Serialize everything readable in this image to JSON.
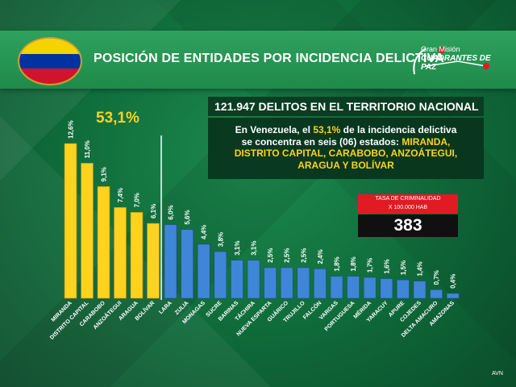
{
  "header": {
    "title": "POSICIÓN DE ENTIDADES  POR INCIDENCIA DELICTIVA",
    "right_logo_line1": "Gran Misión",
    "right_logo_line2": "CUADRANTES DE PAZ"
  },
  "info": {
    "heading": "121.947 DELITOS  EN EL TERRITORIO NACIONAL",
    "line1_a": "En Venezuela, el ",
    "line1_pct": "53,1%",
    "line1_b": " de la incidencia delictiva",
    "line2": "se concentra en seis (06) estados: ",
    "line2_y": "MIRANDA,",
    "line3": "DISTRITO CAPITAL, CARABOBO, ANZOÁTEGUI,",
    "line4": "ARAGUA Y BOLÍVAR"
  },
  "tasa": {
    "label1": "TASA DE CRIMINALIDAD",
    "label2": "X 100.000 HAB",
    "value": "383"
  },
  "credit": "AVN",
  "colors": {
    "highlight": "#ffd21f",
    "rest": "#3f86d8",
    "banner": "#2fa15e",
    "box_red": "#e01b24"
  },
  "chart_data": {
    "type": "bar",
    "highlight_total_label": "53,1%",
    "categories": [
      "MIRANDA",
      "DISTRITO CAPITAL",
      "CARABOBO",
      "ANZOÁTEGUI",
      "ARAGUA",
      "BOLÍVAR",
      "LARA",
      "ZULIA",
      "MONAGAS",
      "SUCRE",
      "BARINAS",
      "TÁCHIRA",
      "NUEVA ESPARTA",
      "GUÁRICO",
      "TRUJILLO",
      "FALCÓN",
      "VARGAS",
      "PORTUGUESA",
      "MÉRIDA",
      "YARACUY",
      "APURE",
      "COJEDES",
      "DELTA AMACURO",
      "AMAZONAS"
    ],
    "values": [
      12.6,
      11.0,
      9.1,
      7.4,
      7.0,
      6.1,
      6.0,
      5.6,
      4.4,
      3.8,
      3.1,
      3.1,
      2.5,
      2.5,
      2.5,
      2.4,
      1.8,
      1.8,
      1.7,
      1.6,
      1.5,
      1.4,
      0.7,
      0.4
    ],
    "value_labels": [
      "12,6%",
      "11,0%",
      "9,1%",
      "7,4%",
      "7,0%",
      "6,1%",
      "6,0%",
      "5,6%",
      "4,4%",
      "3,8%",
      "3,1%",
      "3,1%",
      "2,5%",
      "2,5%",
      "2,5%",
      "2,4%",
      "1,8%",
      "1,8%",
      "1,7%",
      "1,6%",
      "1,5%",
      "1,4%",
      "0,7%",
      "0,4%"
    ],
    "highlight_count": 6,
    "ylim": [
      0,
      14
    ]
  }
}
